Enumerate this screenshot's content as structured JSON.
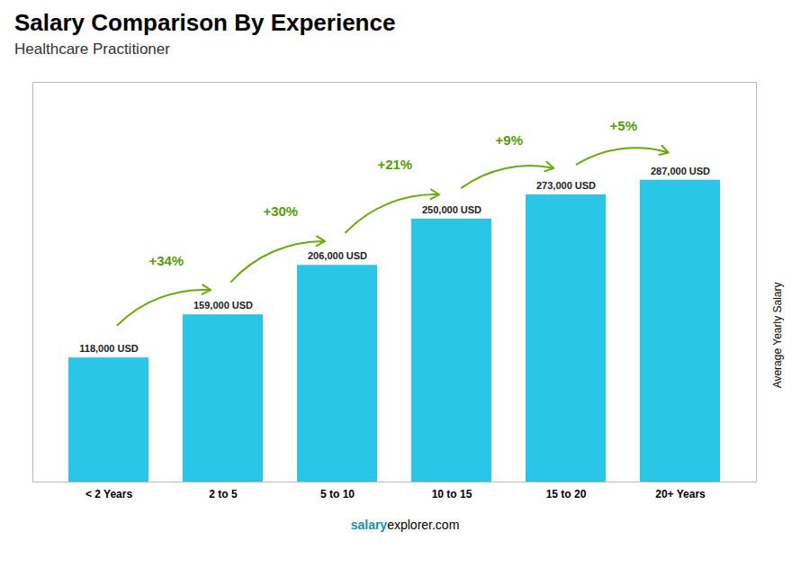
{
  "chart_data": {
    "type": "bar",
    "title": "Salary Comparison By Experience",
    "subtitle": "Healthcare Practitioner",
    "ylabel": "Average Yearly Salary",
    "categories": [
      "< 2 Years",
      "2 to 5",
      "5 to 10",
      "10 to 15",
      "15 to 20",
      "20+ Years"
    ],
    "values": [
      118000,
      159000,
      206000,
      250000,
      273000,
      287000
    ],
    "value_labels": [
      "118,000 USD",
      "159,000 USD",
      "206,000 USD",
      "250,000 USD",
      "273,000 USD",
      "287,000 USD"
    ],
    "data_labels": true,
    "color": "#29c6e8",
    "ylim": [
      0,
      380000
    ],
    "yticks": [],
    "tick_labels": "x",
    "annotations": [
      {
        "text": "+34%",
        "from": "< 2 Years",
        "to": "2 to 5"
      },
      {
        "text": "+30%",
        "from": "2 to 5",
        "to": "5 to 10"
      },
      {
        "text": "+21%",
        "from": "5 to 10",
        "to": "10 to 15"
      },
      {
        "text": "+9%",
        "from": "10 to 15",
        "to": "15 to 20"
      },
      {
        "text": "+5%",
        "from": "15 to 20",
        "to": "20+ Years"
      },
      {
        "text": "salary"
      },
      {
        "text": "explorer.com"
      }
    ]
  }
}
